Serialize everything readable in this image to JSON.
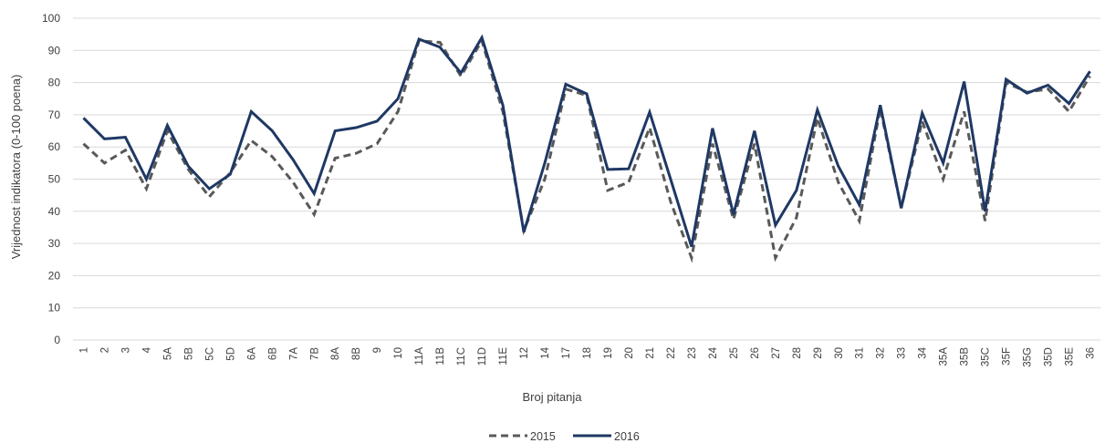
{
  "chart_data": {
    "type": "line",
    "xlabel": "Broj pitanja",
    "ylabel": "Vrijednost indikatora (0-100 poena)",
    "ylim": [
      0,
      100
    ],
    "yticks": [
      0,
      10,
      20,
      30,
      40,
      50,
      60,
      70,
      80,
      90,
      100
    ],
    "grid": true,
    "legend_position": "bottom",
    "categories": [
      "1",
      "2",
      "3",
      "4",
      "5A",
      "5B",
      "5C",
      "5D",
      "6A",
      "6B",
      "7A",
      "7B",
      "8A",
      "8B",
      "9",
      "10",
      "11A",
      "11B",
      "11C",
      "11D",
      "11E",
      "12",
      "14",
      "17",
      "18",
      "19",
      "20",
      "21",
      "22",
      "23",
      "24",
      "25",
      "26",
      "27",
      "28",
      "29",
      "30",
      "31",
      "32",
      "33",
      "34",
      "35A",
      "35B",
      "35C",
      "35F",
      "35G",
      "35D",
      "35E",
      "36"
    ],
    "series": [
      {
        "name": "2015",
        "color": "#595959",
        "style": "dashed",
        "values": [
          61,
          55,
          59,
          47,
          65,
          53,
          44.5,
          52,
          62,
          57,
          49,
          39,
          56.5,
          58,
          61,
          71,
          93,
          92.5,
          82,
          93,
          71,
          34,
          50,
          78,
          76,
          46.5,
          49,
          66,
          43,
          25.5,
          61,
          37.5,
          61,
          25.5,
          38,
          69,
          49,
          37,
          72,
          41,
          68,
          50,
          71,
          37,
          80,
          77,
          78,
          71,
          82
        ]
      },
      {
        "name": "2016",
        "color": "#1f3864",
        "style": "solid",
        "values": [
          69,
          62.5,
          63,
          50,
          66.7,
          54,
          47,
          51.5,
          71,
          65,
          56,
          45.5,
          65,
          66,
          68,
          75,
          93.5,
          91,
          83,
          94,
          73,
          33.5,
          55,
          79.5,
          76.5,
          53,
          53.2,
          70.8,
          50,
          29,
          65.8,
          39,
          65,
          35.7,
          46.5,
          71.5,
          54,
          42,
          73,
          41,
          70.5,
          55,
          80.3,
          40,
          81,
          76.7,
          79.2,
          73.5,
          83.5
        ]
      }
    ]
  }
}
